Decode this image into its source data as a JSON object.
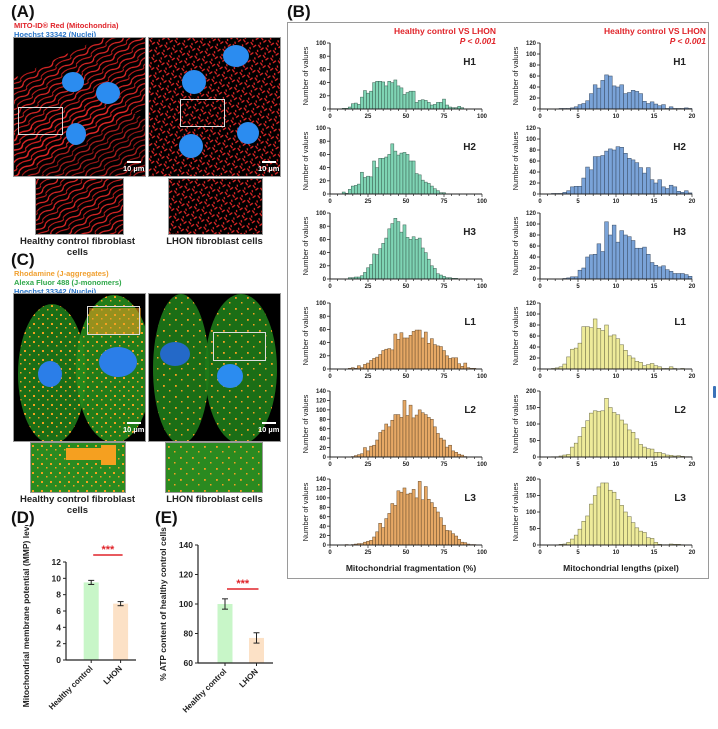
{
  "panels": {
    "A": {
      "label": "(A)",
      "legend": [
        {
          "text": "MITO-ID® Red (Mitochondria)",
          "color": "#e0242a"
        },
        {
          "text": "Hoechst 33342 (Nuclei)",
          "color": "#2a76c9"
        }
      ],
      "scale_bar": "10 µm",
      "captions": [
        "Healthy control fibroblast cells",
        "LHON fibroblast cells"
      ]
    },
    "B": {
      "label": "(B)"
    },
    "C": {
      "label": "(C)",
      "legend": [
        {
          "text": "Rhodamine (J-aggregates)",
          "color": "#f0a030"
        },
        {
          "text": "Alexa Fluor 488 (J-monomers)",
          "color": "#2fa84a"
        },
        {
          "text": "Hoechst 33342 (Nuclei)",
          "color": "#2a76c9"
        }
      ],
      "scale_bar": "10 µm",
      "captions": [
        "Healthy control fibroblast cells",
        "LHON fibroblast cells"
      ]
    },
    "D": {
      "label": "(D)"
    },
    "E": {
      "label": "(E)"
    }
  },
  "chart_data": [
    {
      "id": "B-fragmentation",
      "type": "bar",
      "column_title": "Healthy control VS LHON",
      "p_value": "P < 0.001",
      "xlabel": "Mitochondrial fragmentation (%)",
      "ylabel": "Number of values",
      "xlim": [
        0,
        100
      ],
      "xticks": [
        "0",
        "25",
        "50",
        "75",
        "100"
      ],
      "bin_width": 2,
      "bin_start": 0,
      "series": [
        {
          "name": "H1",
          "color": "#7fd4b4",
          "ylim": [
            0,
            100
          ],
          "yticks": [
            "0",
            "20",
            "40",
            "60",
            "80",
            "100"
          ],
          "values": [
            0,
            0,
            0,
            0,
            1,
            1,
            3,
            8,
            9,
            7,
            18,
            28,
            24,
            27,
            40,
            42,
            42,
            41,
            35,
            42,
            40,
            44,
            35,
            32,
            22,
            25,
            27,
            27,
            10,
            13,
            14,
            13,
            10,
            6,
            7,
            10,
            10,
            15,
            6,
            3,
            2,
            2,
            4,
            2,
            0,
            0,
            0,
            0,
            0,
            0
          ]
        },
        {
          "name": "H2",
          "color": "#7fd4b4",
          "ylim": [
            0,
            100
          ],
          "yticks": [
            "0",
            "20",
            "40",
            "60",
            "80",
            "100"
          ],
          "values": [
            0,
            0,
            0,
            0,
            3,
            1,
            7,
            12,
            13,
            15,
            33,
            25,
            27,
            26,
            50,
            40,
            54,
            54,
            56,
            60,
            76,
            65,
            59,
            62,
            63,
            60,
            50,
            50,
            31,
            29,
            21,
            18,
            16,
            12,
            8,
            5,
            2,
            2,
            0,
            0,
            0,
            0,
            0,
            0,
            0,
            0,
            0,
            0,
            0,
            0
          ]
        },
        {
          "name": "H3",
          "color": "#7fd4b4",
          "ylim": [
            0,
            100
          ],
          "yticks": [
            "0",
            "20",
            "40",
            "60",
            "80",
            "100"
          ],
          "values": [
            0,
            0,
            0,
            0,
            0,
            0,
            2,
            2,
            3,
            3,
            5,
            10,
            17,
            22,
            38,
            37,
            46,
            54,
            62,
            76,
            84,
            92,
            87,
            71,
            82,
            63,
            60,
            64,
            60,
            62,
            47,
            40,
            30,
            20,
            16,
            8,
            6,
            4,
            2,
            2,
            1,
            1,
            0,
            0,
            0,
            0,
            0,
            0,
            0,
            0
          ]
        },
        {
          "name": "L1",
          "color": "#e6a865",
          "ylim": [
            0,
            100
          ],
          "yticks": [
            "0",
            "20",
            "40",
            "60",
            "80",
            "100"
          ],
          "values": [
            0,
            0,
            0,
            0,
            0,
            0,
            1,
            2,
            1,
            5,
            2,
            7,
            9,
            13,
            16,
            18,
            22,
            28,
            30,
            31,
            29,
            53,
            45,
            55,
            47,
            47,
            51,
            57,
            59,
            59,
            47,
            56,
            39,
            46,
            37,
            35,
            34,
            28,
            20,
            16,
            17,
            17,
            8,
            4,
            9,
            2,
            1,
            1,
            0,
            0
          ]
        },
        {
          "name": "L2",
          "color": "#e6a865",
          "ylim": [
            0,
            140
          ],
          "yticks": [
            "0",
            "20",
            "40",
            "60",
            "80",
            "100",
            "120",
            "140"
          ],
          "values": [
            0,
            0,
            0,
            0,
            0,
            0,
            0,
            1,
            3,
            5,
            7,
            20,
            13,
            23,
            25,
            36,
            52,
            57,
            70,
            64,
            78,
            90,
            90,
            84,
            120,
            88,
            110,
            83,
            89,
            100,
            94,
            90,
            84,
            80,
            64,
            50,
            40,
            36,
            21,
            25,
            13,
            10,
            6,
            4,
            1,
            0,
            0,
            0,
            0,
            0
          ]
        },
        {
          "name": "L3",
          "color": "#e6a865",
          "ylim": [
            0,
            140
          ],
          "yticks": [
            "0",
            "20",
            "40",
            "60",
            "80",
            "100",
            "120",
            "140"
          ],
          "values": [
            0,
            0,
            0,
            0,
            0,
            1,
            0,
            1,
            2,
            3,
            3,
            6,
            8,
            10,
            17,
            28,
            46,
            37,
            56,
            67,
            88,
            84,
            115,
            112,
            121,
            108,
            110,
            118,
            100,
            135,
            96,
            124,
            97,
            90,
            80,
            70,
            58,
            42,
            31,
            30,
            24,
            19,
            12,
            6,
            5,
            2,
            1,
            1,
            0,
            0
          ]
        }
      ]
    },
    {
      "id": "B-lengths",
      "type": "bar",
      "column_title": "Healthy control VS LHON",
      "p_value": "P < 0.001",
      "xlabel": "Mitochondrial lengths (pixel)",
      "ylabel": "Number of values",
      "xlim": [
        0,
        20
      ],
      "xticks": [
        "0",
        "5",
        "10",
        "15",
        "20"
      ],
      "bin_width": 0.5,
      "bin_start": 0,
      "series": [
        {
          "name": "H1",
          "color": "#7aa3d8",
          "ylim": [
            0,
            120
          ],
          "yticks": [
            "0",
            "20",
            "40",
            "60",
            "80",
            "100",
            "120"
          ],
          "values": [
            0,
            0,
            0,
            0,
            0,
            1,
            1,
            1,
            2,
            4,
            8,
            10,
            15,
            28,
            44,
            38,
            52,
            62,
            60,
            42,
            40,
            44,
            28,
            30,
            34,
            32,
            28,
            14,
            10,
            13,
            9,
            6,
            8,
            1,
            4,
            1,
            1,
            1,
            2,
            1
          ]
        },
        {
          "name": "H2",
          "color": "#7aa3d8",
          "ylim": [
            0,
            120
          ],
          "yticks": [
            "0",
            "20",
            "40",
            "60",
            "80",
            "100",
            "120"
          ],
          "values": [
            0,
            0,
            0,
            1,
            1,
            1,
            3,
            6,
            13,
            14,
            14,
            29,
            49,
            44,
            68,
            68,
            70,
            78,
            82,
            80,
            86,
            85,
            74,
            65,
            62,
            57,
            48,
            38,
            48,
            26,
            20,
            26,
            13,
            10,
            16,
            13,
            5,
            3,
            6,
            2
          ]
        },
        {
          "name": "H3",
          "color": "#7aa3d8",
          "ylim": [
            0,
            120
          ],
          "yticks": [
            "0",
            "20",
            "40",
            "60",
            "80",
            "100",
            "120"
          ],
          "values": [
            0,
            0,
            0,
            0,
            0,
            0,
            1,
            2,
            4,
            4,
            16,
            20,
            40,
            44,
            45,
            64,
            50,
            104,
            80,
            98,
            67,
            88,
            80,
            77,
            70,
            56,
            56,
            58,
            45,
            30,
            25,
            22,
            24,
            17,
            14,
            10,
            10,
            10,
            8,
            5
          ]
        },
        {
          "name": "L1",
          "color": "#eeeb9a",
          "ylim": [
            0,
            120
          ],
          "yticks": [
            "0",
            "20",
            "40",
            "60",
            "80",
            "100",
            "120"
          ],
          "values": [
            0,
            0,
            0,
            1,
            2,
            4,
            9,
            22,
            36,
            38,
            47,
            77,
            77,
            75,
            91,
            74,
            70,
            80,
            60,
            62,
            55,
            44,
            34,
            24,
            20,
            14,
            12,
            6,
            8,
            10,
            6,
            4,
            1,
            1,
            4,
            1,
            0,
            1,
            0,
            0
          ]
        },
        {
          "name": "L2",
          "color": "#eeeb9a",
          "ylim": [
            0,
            200
          ],
          "yticks": [
            "0",
            "50",
            "100",
            "150",
            "200"
          ],
          "values": [
            0,
            0,
            0,
            1,
            1,
            3,
            6,
            8,
            30,
            42,
            62,
            90,
            110,
            133,
            140,
            138,
            140,
            178,
            150,
            135,
            128,
            112,
            100,
            82,
            75,
            55,
            38,
            30,
            25,
            24,
            14,
            14,
            10,
            6,
            5,
            3,
            4,
            2,
            1,
            1
          ]
        },
        {
          "name": "L3",
          "color": "#eeeb9a",
          "ylim": [
            0,
            200
          ],
          "yticks": [
            "0",
            "50",
            "100",
            "150",
            "200"
          ],
          "values": [
            0,
            0,
            0,
            0,
            0,
            2,
            3,
            8,
            18,
            30,
            48,
            72,
            88,
            124,
            150,
            176,
            188,
            188,
            166,
            160,
            138,
            120,
            100,
            86,
            68,
            52,
            42,
            38,
            22,
            20,
            8,
            2,
            1,
            1,
            3,
            2,
            2,
            1,
            0,
            0
          ]
        }
      ]
    },
    {
      "id": "D-mmp",
      "type": "bar",
      "title": "",
      "xlabel": "",
      "ylabel": "Mitochondrial membrane potential (MMP) levels",
      "categories": [
        "Healthy control",
        "LHON"
      ],
      "values": [
        9.5,
        6.9
      ],
      "errors": [
        0.25,
        0.25
      ],
      "colors": [
        "#c8f6c8",
        "#fce1c6"
      ],
      "ylim": [
        0,
        12
      ],
      "yticks": [
        "0",
        "2",
        "4",
        "6",
        "8",
        "10",
        "12"
      ],
      "significance": "***",
      "significance_color": "#e0242a"
    },
    {
      "id": "E-atp",
      "type": "bar",
      "title": "",
      "xlabel": "",
      "ylabel": "% ATP content of healthy control cells",
      "categories": [
        "Healthy control",
        "LHON"
      ],
      "values": [
        100,
        77
      ],
      "errors": [
        3.5,
        3.5
      ],
      "colors": [
        "#c8f6c8",
        "#fce1c6"
      ],
      "ylim": [
        60,
        140
      ],
      "yticks": [
        "60",
        "80",
        "100",
        "120",
        "140"
      ],
      "significance": "***",
      "significance_color": "#e0242a"
    }
  ]
}
